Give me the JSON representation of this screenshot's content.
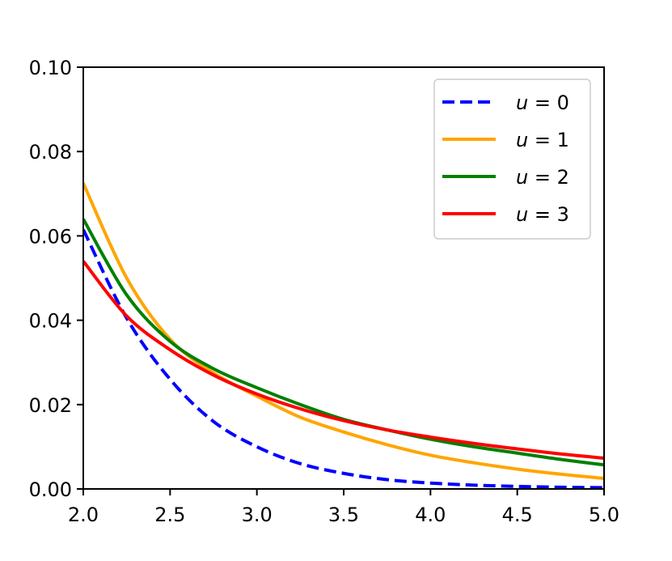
{
  "chart_data": {
    "type": "line",
    "title": "",
    "xlabel": "",
    "ylabel": "",
    "xlim": [
      2.0,
      5.0
    ],
    "ylim": [
      0.0,
      0.1
    ],
    "x_ticks": [
      "2.0",
      "2.5",
      "3.0",
      "3.5",
      "4.0",
      "4.5",
      "5.0"
    ],
    "y_ticks": [
      "0.00",
      "0.02",
      "0.04",
      "0.06",
      "0.08",
      "0.10"
    ],
    "grid": false,
    "legend_position": "top-right",
    "x": [
      2.0,
      2.25,
      2.5,
      2.75,
      3.0,
      3.25,
      3.5,
      3.75,
      4.0,
      4.25,
      4.5,
      4.75,
      5.0
    ],
    "series": [
      {
        "name": "u = 0",
        "var": "u",
        "value": "0",
        "color": "#0000ff",
        "dashed": true,
        "values": [
          0.0615,
          0.0405,
          0.026,
          0.016,
          0.01,
          0.006,
          0.0037,
          0.0022,
          0.0014,
          0.0009,
          0.0006,
          0.0004,
          0.0003
        ]
      },
      {
        "name": "u = 1",
        "var": "u",
        "value": "1",
        "color": "#ffa500",
        "dashed": false,
        "values": [
          0.0725,
          0.05,
          0.0355,
          0.0275,
          0.022,
          0.017,
          0.0135,
          0.0105,
          0.008,
          0.0062,
          0.0047,
          0.0035,
          0.0025
        ]
      },
      {
        "name": "u = 2",
        "var": "u",
        "value": "2",
        "color": "#008000",
        "dashed": false,
        "values": [
          0.064,
          0.046,
          0.035,
          0.0285,
          0.024,
          0.02,
          0.0165,
          0.014,
          0.0118,
          0.01,
          0.0085,
          0.007,
          0.0057
        ]
      },
      {
        "name": "u = 3",
        "var": "u",
        "value": "3",
        "color": "#ff0000",
        "dashed": false,
        "values": [
          0.054,
          0.041,
          0.033,
          0.027,
          0.0225,
          0.019,
          0.0162,
          0.014,
          0.0123,
          0.0108,
          0.0095,
          0.0083,
          0.0073
        ]
      }
    ]
  }
}
